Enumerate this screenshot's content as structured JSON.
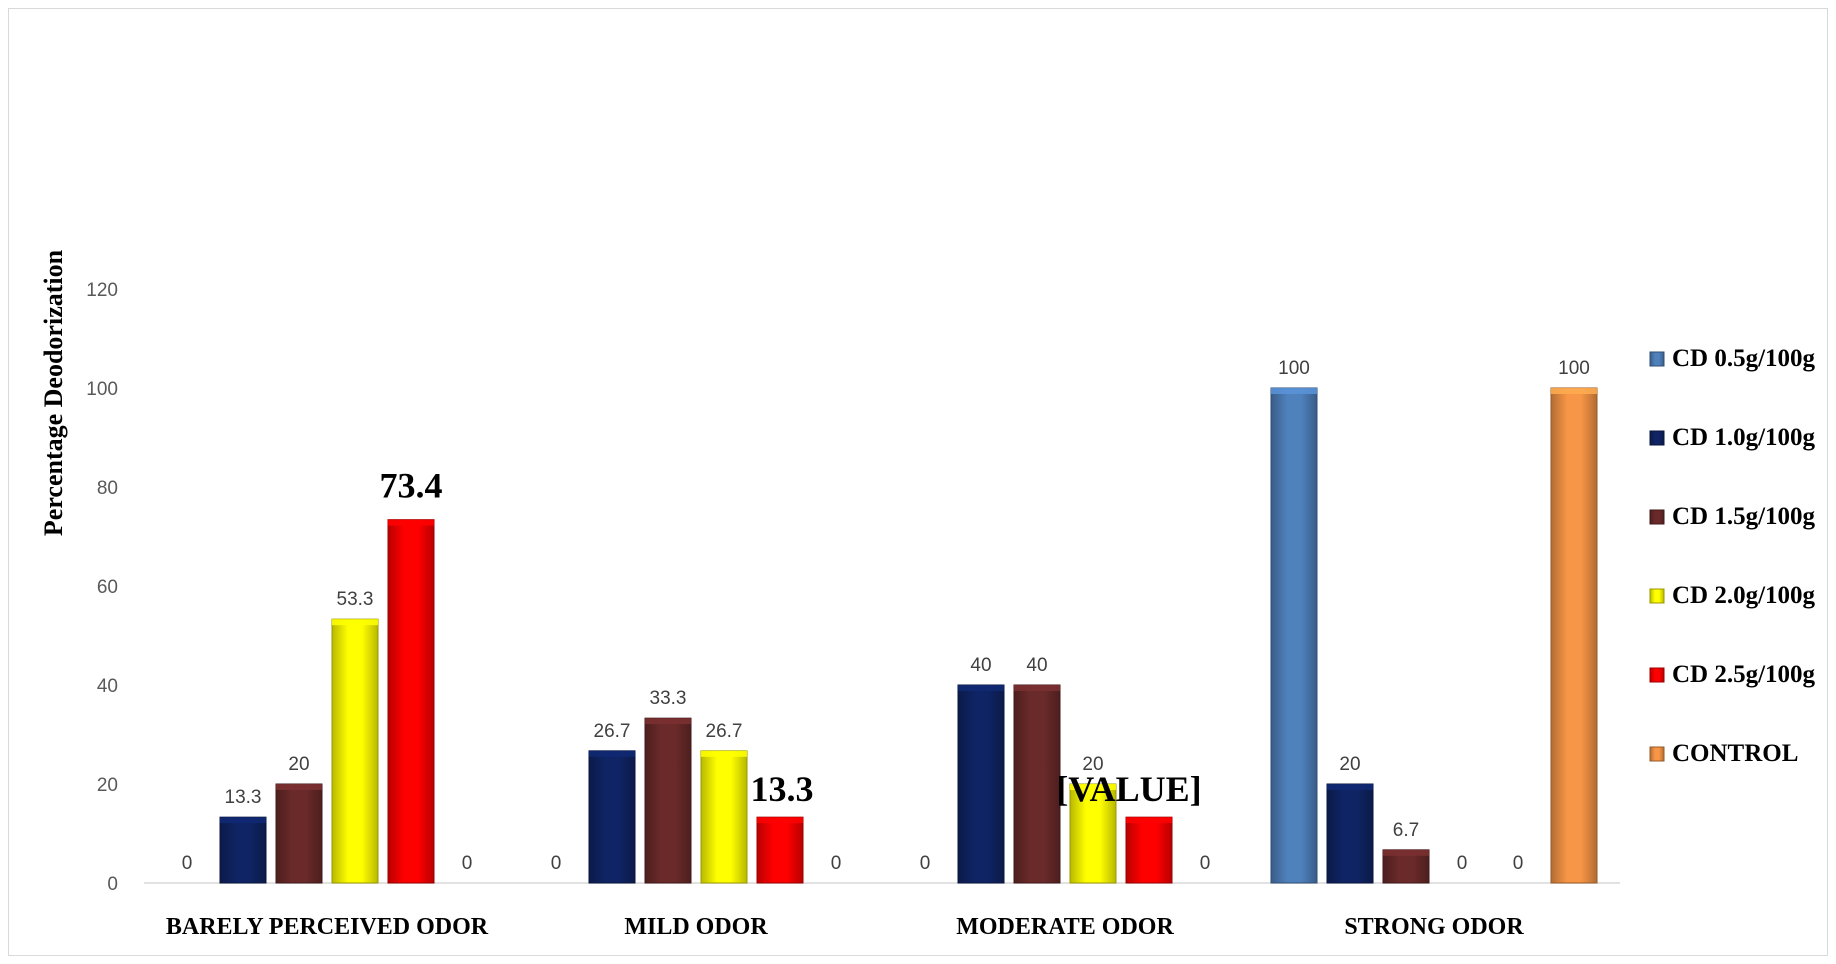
{
  "chart_data": {
    "type": "bar",
    "ylabel": "Percentage Deodorization",
    "xlabel": "",
    "ylim": [
      0,
      120
    ],
    "yticks": [
      0,
      20,
      40,
      60,
      80,
      100,
      120
    ],
    "grid": false,
    "legend_position": "right",
    "categories": [
      "BARELY PERCEIVED ODOR",
      "MILD ODOR",
      "MODERATE ODOR",
      "STRONG ODOR"
    ],
    "series": [
      {
        "name": "CD 0.5g/100g",
        "color": "#4f81bd",
        "values": [
          0,
          0,
          0,
          100
        ],
        "labels": [
          "0",
          "0",
          "0",
          "100"
        ]
      },
      {
        "name": "CD 1.0g/100g",
        "color": "#0f2464",
        "values": [
          13.3,
          26.7,
          40,
          20
        ],
        "labels": [
          "13.3",
          "26.7",
          "40",
          "20"
        ]
      },
      {
        "name": "CD 1.5g/100g",
        "color": "#6b2a2a",
        "values": [
          20,
          33.3,
          40,
          6.7
        ],
        "labels": [
          "20",
          "33.3",
          "40",
          "6.7"
        ]
      },
      {
        "name": "CD 2.0g/100g",
        "color": "#ffff00",
        "values": [
          53.3,
          26.7,
          20,
          0
        ],
        "labels": [
          "53.3",
          "26.7",
          "20",
          "0"
        ]
      },
      {
        "name": "CD 2.5g/100g",
        "color": "#ff0000",
        "values": [
          73.4,
          13.3,
          13.3,
          0
        ],
        "labels": [
          "73.4",
          "13.3",
          "[VALUE]",
          "0"
        ]
      },
      {
        "name": "CONTROL",
        "color": "#f79646",
        "values": [
          0,
          0,
          0,
          100
        ],
        "labels": [
          "0",
          "0",
          "0",
          "100"
        ]
      }
    ]
  }
}
